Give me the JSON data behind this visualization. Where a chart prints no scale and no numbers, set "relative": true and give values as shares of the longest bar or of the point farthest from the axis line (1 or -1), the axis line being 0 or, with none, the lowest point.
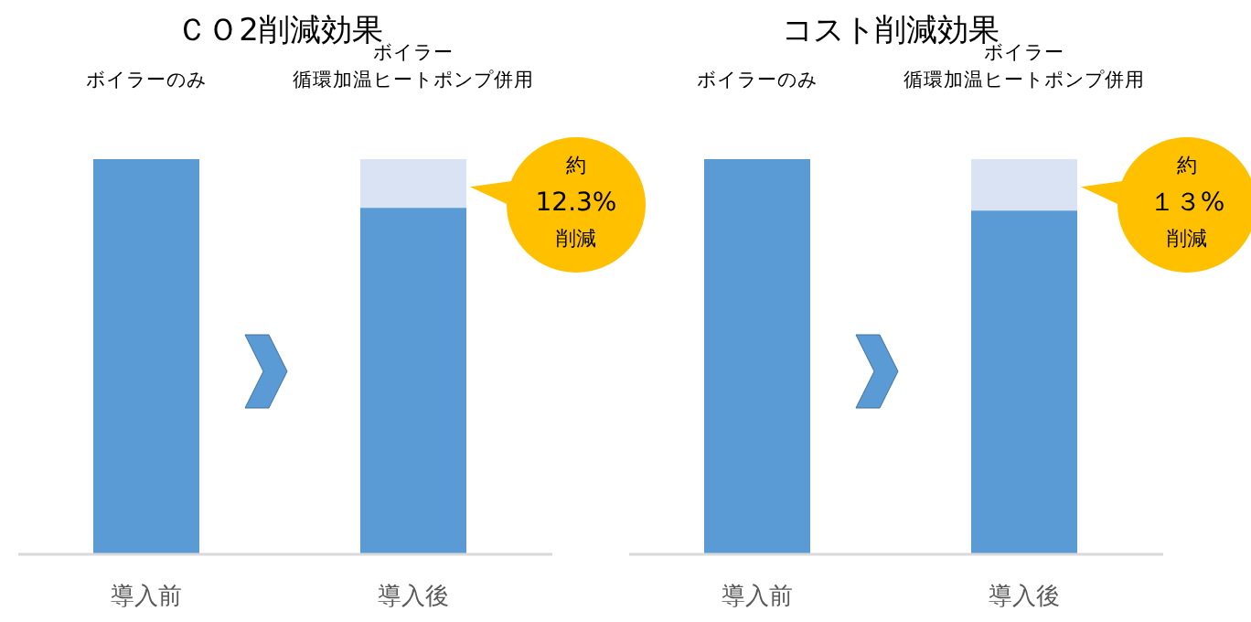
{
  "chart_data": [
    {
      "type": "bar",
      "title": "ＣＯ2削減効果",
      "categories": [
        "導入前",
        "導入後"
      ],
      "stacked": true,
      "relative": true,
      "series": [
        {
          "color": "#5b9bd5",
          "values": [
            1,
            0.877
          ]
        },
        {
          "color": "#dae3f3",
          "values": [
            0,
            0.123
          ]
        }
      ],
      "annotations": [
        "ボイラーのみ",
        "ボイラー",
        "循環加温ヒートポンプ併用",
        "約",
        "12.3%",
        "削減"
      ]
    },
    {
      "type": "bar",
      "title": "コスト削減効果",
      "categories": [
        "導入前",
        "導入後"
      ],
      "stacked": true,
      "relative": true,
      "series": [
        {
          "color": "#5b9bd5",
          "values": [
            1,
            0.87
          ]
        },
        {
          "color": "#dae3f3",
          "values": [
            0,
            0.13
          ]
        }
      ],
      "annotations": [
        "ボイラーのみ",
        "ボイラー",
        "循環加温ヒートポンプ併用",
        "約",
        "１３%",
        "削減"
      ]
    }
  ]
}
